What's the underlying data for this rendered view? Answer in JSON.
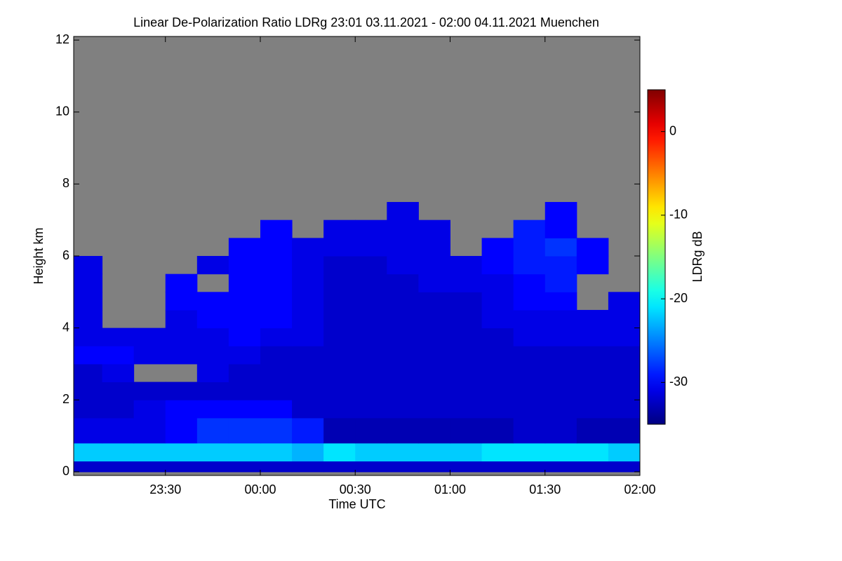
{
  "chart_data": {
    "type": "heatmap",
    "title": "Linear De-Polarization Ratio LDRg   23:01 03.11.2021 - 02:00 04.11.2021 Muenchen",
    "x_label": "Time UTC",
    "y_label": "Height km",
    "colorbar_label": "LDRg dB",
    "colormap": "jet",
    "missing_color": "#808080",
    "xlim": [
      23.0167,
      26.0
    ],
    "xticks": [
      {
        "value": 23.5,
        "label": "23:30"
      },
      {
        "value": 24.0,
        "label": "00:00"
      },
      {
        "value": 24.5,
        "label": "00:30"
      },
      {
        "value": 25.0,
        "label": "01:00"
      },
      {
        "value": 25.5,
        "label": "01:30"
      },
      {
        "value": 26.0,
        "label": "02:00"
      }
    ],
    "ylim": [
      -0.1,
      12.1
    ],
    "yticks": [
      0,
      2,
      4,
      6,
      8,
      10,
      12
    ],
    "clim": [
      -35,
      5
    ],
    "cticks": [
      -30,
      -20,
      -10,
      0
    ],
    "x_bins": [
      23.0167,
      23.1667,
      23.3333,
      23.5,
      23.6667,
      23.8333,
      24.0,
      24.1667,
      24.3333,
      24.5,
      24.6667,
      24.8333,
      25.0,
      25.1667,
      25.3333,
      25.5,
      25.6667,
      25.8333,
      26.0
    ],
    "y_bins": [
      0,
      0.3,
      0.8,
      1.5,
      2,
      2.5,
      3,
      3.5,
      4,
      4.5,
      5,
      5.5,
      6,
      6.5,
      7,
      7.5,
      12
    ],
    "values": [
      [
        -32,
        -32,
        -32,
        -32,
        -32,
        -32,
        -32,
        -32,
        -32,
        -32,
        -32,
        -32,
        -32,
        -32,
        -32,
        -32,
        -32,
        -32
      ],
      [
        -22,
        -22,
        -22,
        -22,
        -22,
        -22,
        -22,
        -23,
        -21,
        -22,
        -22,
        -22,
        -22,
        -21,
        -21,
        -21,
        -21,
        -22
      ],
      [
        -31,
        -31,
        -31,
        -30,
        -28,
        -28,
        -28,
        -29,
        -33,
        -33,
        -33,
        -33,
        -33,
        -33,
        -32,
        -32,
        -33,
        -33
      ],
      [
        -32,
        -32,
        -31,
        -30,
        -30,
        -30,
        -30,
        -32,
        -32,
        -32,
        -32,
        -32,
        -32,
        -32,
        -32,
        -32,
        -32,
        -32
      ],
      [
        -32,
        -32,
        -32,
        -32,
        -32,
        -32,
        -32,
        -32,
        -32,
        -32,
        -32,
        -32,
        -32,
        -32,
        -32,
        -32,
        -32,
        -32
      ],
      [
        -32,
        -31,
        null,
        null,
        -31,
        -32,
        -32,
        -32,
        -32,
        -32,
        -32,
        -32,
        -32,
        -32,
        -32,
        -32,
        -32,
        -32
      ],
      [
        -30,
        -30,
        -31,
        -31,
        -31,
        -31,
        -32,
        -32,
        -32,
        -32,
        -32,
        -32,
        -32,
        -32,
        -32,
        -32,
        -32,
        -32
      ],
      [
        -31,
        -31,
        -31,
        -31,
        -31,
        -30,
        -31,
        -31,
        -32,
        -32,
        -32,
        -32,
        -32,
        -32,
        -31,
        -31,
        -31,
        -31
      ],
      [
        -31,
        null,
        null,
        -31,
        -30,
        -30,
        -30,
        -31,
        -32,
        -32,
        -32,
        -32,
        -32,
        -31,
        -31,
        -31,
        -31,
        -31
      ],
      [
        -31,
        null,
        null,
        -30,
        -30,
        -30,
        -30,
        -31,
        -32,
        -32,
        -32,
        -32,
        -32,
        -31,
        -30,
        -30,
        null,
        -31
      ],
      [
        -31,
        null,
        null,
        -30,
        null,
        -30,
        -30,
        -31,
        -32,
        -32,
        -32,
        -31,
        -31,
        -31,
        -30,
        -29,
        null,
        null
      ],
      [
        -31,
        null,
        null,
        null,
        -31,
        -30,
        -30,
        -31,
        -32,
        -32,
        -31,
        -31,
        -31,
        -30,
        -29,
        -29,
        -30,
        null
      ],
      [
        null,
        null,
        null,
        null,
        null,
        -30,
        -30,
        -31,
        -31,
        -31,
        -31,
        -31,
        null,
        -30,
        -29,
        -28,
        -30,
        null
      ],
      [
        null,
        null,
        null,
        null,
        null,
        null,
        -30,
        null,
        -31,
        -31,
        -31,
        -31,
        null,
        null,
        -29,
        -30,
        null,
        null
      ],
      [
        null,
        null,
        null,
        null,
        null,
        null,
        null,
        null,
        null,
        null,
        -31,
        null,
        null,
        null,
        null,
        -30,
        null,
        null
      ],
      [
        null,
        null,
        null,
        null,
        null,
        null,
        null,
        null,
        null,
        null,
        null,
        null,
        null,
        null,
        null,
        null,
        null,
        null
      ]
    ]
  }
}
